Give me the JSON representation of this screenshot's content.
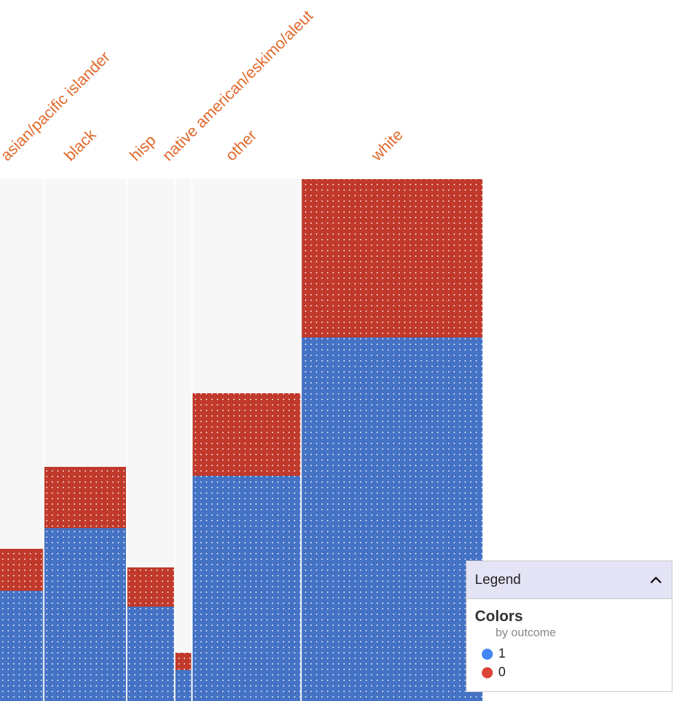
{
  "chart_data": {
    "type": "bar",
    "subtype": "stacked-mosaic-unit",
    "categories": [
      "asian/pacific islander",
      "black",
      "hisp",
      "native american/eskimo/aleut",
      "other",
      "white"
    ],
    "column_shares": [
      0.085,
      0.159,
      0.092,
      0.033,
      0.209,
      0.349
    ],
    "series": [
      {
        "name": "1",
        "values": [
          160,
          251,
          137,
          45,
          327,
          528
        ],
        "color": "#4472c4"
      },
      {
        "name": "0",
        "values": [
          61,
          89,
          57,
          25,
          120,
          230
        ],
        "color": "#c0392b"
      }
    ],
    "ymax": 758,
    "panel_color": "#f7f7f7"
  },
  "legend": {
    "title": "Legend",
    "section_title": "Colors",
    "section_subtitle": "by outcome",
    "items": [
      {
        "label": "1",
        "color": "#4285f4"
      },
      {
        "label": "0",
        "color": "#db4437"
      }
    ]
  }
}
